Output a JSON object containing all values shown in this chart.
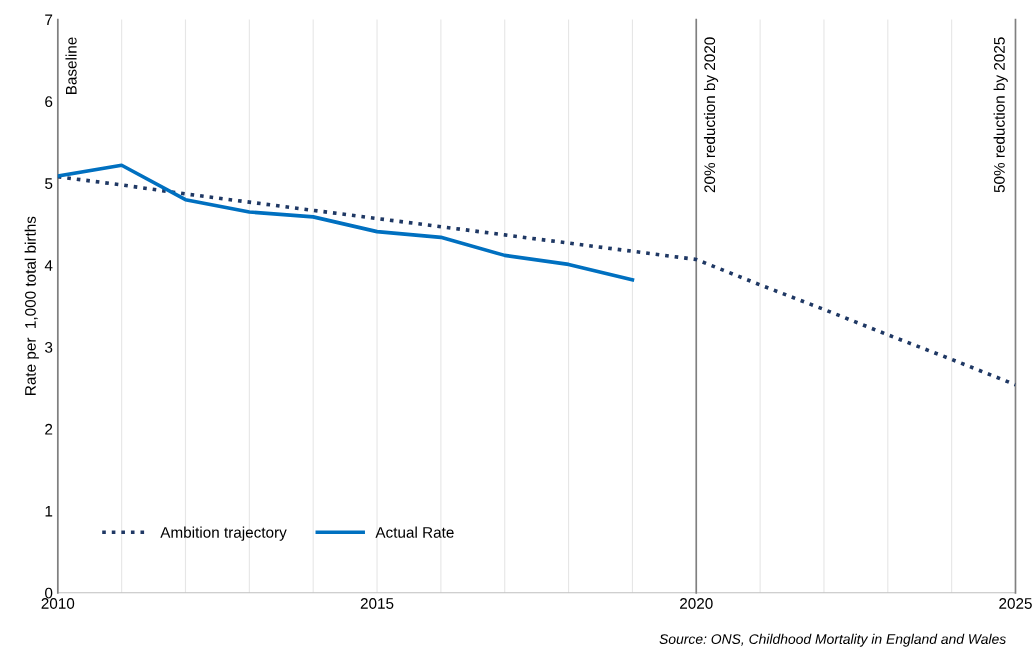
{
  "chart_data": {
    "type": "line",
    "ylabel": "Rate per  1,000 total births",
    "xlim": [
      2010,
      2025
    ],
    "ylim": [
      0,
      7
    ],
    "xticks": [
      2010,
      {
        "value": 2011,
        "label": null
      },
      {
        "value": 2012,
        "label": null
      },
      {
        "value": 2013,
        "label": null
      },
      {
        "value": 2014,
        "label": null
      },
      2015,
      {
        "value": 2016,
        "label": null
      },
      {
        "value": 2017,
        "label": null
      },
      {
        "value": 2018,
        "label": null
      },
      {
        "value": 2019,
        "label": null
      },
      2020,
      {
        "value": 2021,
        "label": null
      },
      {
        "value": 2022,
        "label": null
      },
      {
        "value": 2023,
        "label": null
      },
      {
        "value": 2024,
        "label": null
      },
      2025
    ],
    "yticks": [
      0,
      1,
      2,
      3,
      4,
      5,
      6,
      7
    ],
    "grid": "x",
    "legend": "bottom left",
    "series": [
      {
        "name": "Ambition trajectory",
        "color": "#1f3864",
        "line_style": "dotted",
        "x": [
          2010,
          2011,
          2012,
          2013,
          2014,
          2015,
          2016,
          2017,
          2018,
          2019,
          2020,
          2021,
          2022,
          2023,
          2024,
          2025
        ],
        "values": [
          5.08,
          4.98,
          4.87,
          4.77,
          4.67,
          4.57,
          4.47,
          4.37,
          4.27,
          4.17,
          4.07,
          3.76,
          3.46,
          3.15,
          2.85,
          2.54
        ]
      },
      {
        "name": "Actual Rate",
        "color": "#0070c0",
        "line_style": "solid",
        "x": [
          2010,
          2011,
          2012,
          2013,
          2014,
          2015,
          2016,
          2017,
          2018,
          2019
        ],
        "values": [
          5.09,
          5.22,
          4.8,
          4.65,
          4.59,
          4.41,
          4.34,
          4.12,
          4.01,
          3.82
        ]
      }
    ],
    "ref_lines": [
      {
        "axis": "x",
        "value": 2010,
        "label": "Baseline",
        "color": "#808080"
      },
      {
        "axis": "x",
        "value": 2020,
        "label": "20% reduction by 2020",
        "color": "#808080"
      },
      {
        "axis": "x",
        "value": 2025,
        "label": "50% reduction by 2025",
        "color": "#808080"
      }
    ],
    "annotations": [
      "Source: ONS, Childhood Mortality in England and Wales"
    ]
  }
}
